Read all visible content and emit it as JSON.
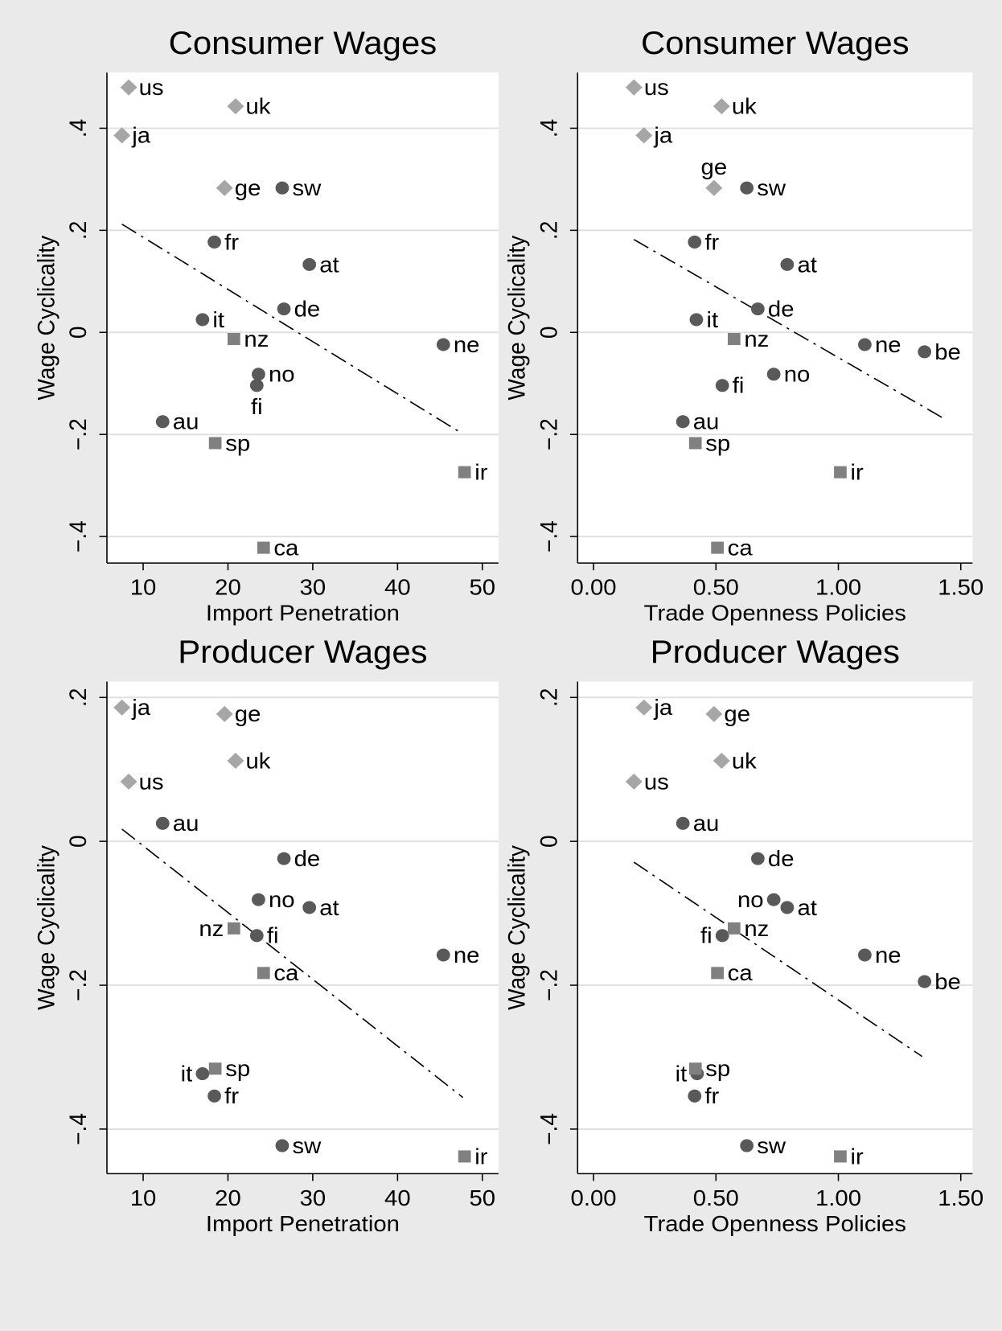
{
  "chart_data": [
    {
      "type": "scatter",
      "title": "Consumer Wages",
      "xlabel": "Import Penetration",
      "ylabel": "Wage Cyclicality",
      "xlim": [
        5.73,
        51.9
      ],
      "ylim": [
        -0.452,
        0.509
      ],
      "xticks": [
        10,
        20,
        30,
        40,
        50
      ],
      "yticks": [
        {
          "value": 0.4,
          "label": ".4"
        },
        {
          "value": 0.2,
          "label": ".2"
        },
        0,
        {
          "value": -0.2,
          "label": "−.2"
        },
        {
          "value": -0.4,
          "label": "−.4"
        }
      ],
      "grid": true,
      "series": [
        {
          "marker": "diamond",
          "color": "#a6a6a6",
          "labels": [
            "us",
            "uk",
            "ja",
            "ge"
          ],
          "x": [
            8.3,
            20.9,
            7.5,
            19.6
          ],
          "y": [
            0.48,
            0.443,
            0.386,
            0.283
          ]
        },
        {
          "marker": "circle",
          "color": "#595959",
          "labels": [
            "sw",
            "fr",
            "at",
            "de",
            "it",
            "ne",
            "no",
            "fi",
            "au"
          ],
          "x": [
            26.4,
            18.4,
            29.6,
            26.6,
            17.0,
            45.4,
            23.6,
            23.4,
            12.3
          ],
          "y": [
            0.283,
            0.177,
            0.133,
            0.046,
            0.025,
            -0.024,
            -0.082,
            -0.104,
            -0.175
          ]
        },
        {
          "marker": "square",
          "color": "#808080",
          "labels": [
            "nz",
            "sp",
            "ir",
            "ca"
          ],
          "x": [
            20.7,
            18.5,
            47.9,
            24.2
          ],
          "y": [
            -0.013,
            -0.217,
            -0.274,
            -0.422
          ]
        }
      ],
      "fit_line": {
        "x": [
          7.5,
          47.2
        ],
        "y": [
          0.212,
          -0.194
        ]
      }
    },
    {
      "type": "scatter",
      "title": "Consumer Wages",
      "xlabel": "Trade Openness Policies",
      "ylabel": "Wage Cyclicality",
      "xlim": [
        -0.065,
        1.548
      ],
      "ylim": [
        -0.452,
        0.509
      ],
      "xticks": [
        {
          "value": 0,
          "label": "0.00"
        },
        {
          "value": 0.5,
          "label": "0.50"
        },
        {
          "value": 1,
          "label": "1.00"
        },
        {
          "value": 1.5,
          "label": "1.50"
        }
      ],
      "yticks": [
        {
          "value": 0.4,
          "label": ".4"
        },
        {
          "value": 0.2,
          "label": ".2"
        },
        0,
        {
          "value": -0.2,
          "label": "−.2"
        },
        {
          "value": -0.4,
          "label": "−.4"
        }
      ],
      "grid": true,
      "series": [
        {
          "marker": "diamond",
          "color": "#a6a6a6",
          "labels": [
            "us",
            "uk",
            "ja",
            "ge"
          ],
          "x": [
            0.165,
            0.523,
            0.206,
            0.492
          ],
          "y": [
            0.48,
            0.443,
            0.386,
            0.283
          ]
        },
        {
          "marker": "circle",
          "color": "#595959",
          "labels": [
            "sw",
            "fr",
            "at",
            "de",
            "it",
            "ne",
            "be",
            "no",
            "fi",
            "au"
          ],
          "x": [
            0.626,
            0.413,
            0.791,
            0.671,
            0.42,
            1.108,
            1.352,
            0.736,
            0.526,
            0.365
          ],
          "y": [
            0.283,
            0.177,
            0.133,
            0.046,
            0.025,
            -0.024,
            -0.038,
            -0.082,
            -0.104,
            -0.175
          ]
        },
        {
          "marker": "square",
          "color": "#808080",
          "labels": [
            "nz",
            "sp",
            "ir",
            "ca"
          ],
          "x": [
            0.574,
            0.416,
            1.008,
            0.506
          ],
          "y": [
            -0.013,
            -0.217,
            -0.274,
            -0.422
          ]
        }
      ],
      "fit_line": {
        "x": [
          0.165,
          1.428
        ],
        "y": [
          0.182,
          -0.168
        ]
      }
    },
    {
      "type": "scatter",
      "title": "Producer Wages",
      "xlabel": "Import Penetration",
      "ylabel": "Wage Cyclicality",
      "xlim": [
        5.73,
        51.9
      ],
      "ylim": [
        -0.462,
        0.222
      ],
      "xticks": [
        10,
        20,
        30,
        40,
        50
      ],
      "yticks": [
        {
          "value": 0.2,
          "label": ".2"
        },
        0,
        {
          "value": -0.2,
          "label": "−.2"
        },
        {
          "value": -0.4,
          "label": "−.4"
        }
      ],
      "grid": true,
      "series": [
        {
          "marker": "diamond",
          "color": "#a6a6a6",
          "labels": [
            "ja",
            "ge",
            "uk",
            "us"
          ],
          "x": [
            7.5,
            19.6,
            20.9,
            8.3
          ],
          "y": [
            0.186,
            0.177,
            0.112,
            0.083
          ]
        },
        {
          "marker": "circle",
          "color": "#595959",
          "labels": [
            "au",
            "de",
            "no",
            "at",
            "fi",
            "ne",
            "it",
            "fr",
            "sw"
          ],
          "x": [
            12.3,
            26.6,
            23.6,
            29.6,
            23.4,
            45.4,
            17.0,
            18.4,
            26.4
          ],
          "y": [
            0.025,
            -0.024,
            -0.081,
            -0.092,
            -0.131,
            -0.158,
            -0.323,
            -0.354,
            -0.423
          ]
        },
        {
          "marker": "square",
          "color": "#808080",
          "labels": [
            "nz",
            "ca",
            "sp",
            "ir"
          ],
          "x": [
            20.7,
            24.2,
            18.5,
            47.9
          ],
          "y": [
            -0.121,
            -0.183,
            -0.316,
            -0.438
          ]
        }
      ],
      "fit_line": {
        "x": [
          7.5,
          47.7
        ],
        "y": [
          0.017,
          -0.356
        ]
      }
    },
    {
      "type": "scatter",
      "title": "Producer Wages",
      "xlabel": "Trade Openness Policies",
      "ylabel": "Wage Cyclicality",
      "xlim": [
        -0.065,
        1.548
      ],
      "ylim": [
        -0.462,
        0.222
      ],
      "xticks": [
        {
          "value": 0,
          "label": "0.00"
        },
        {
          "value": 0.5,
          "label": "0.50"
        },
        {
          "value": 1,
          "label": "1.00"
        },
        {
          "value": 1.5,
          "label": "1.50"
        }
      ],
      "yticks": [
        {
          "value": 0.2,
          "label": ".2"
        },
        0,
        {
          "value": -0.2,
          "label": "−.2"
        },
        {
          "value": -0.4,
          "label": "−.4"
        }
      ],
      "grid": true,
      "series": [
        {
          "marker": "diamond",
          "color": "#a6a6a6",
          "labels": [
            "ja",
            "ge",
            "uk",
            "us"
          ],
          "x": [
            0.206,
            0.492,
            0.523,
            0.165
          ],
          "y": [
            0.186,
            0.177,
            0.112,
            0.083
          ]
        },
        {
          "marker": "circle",
          "color": "#595959",
          "labels": [
            "au",
            "de",
            "no",
            "at",
            "fi",
            "ne",
            "be",
            "it",
            "fr",
            "sw"
          ],
          "x": [
            0.365,
            0.671,
            0.736,
            0.791,
            0.526,
            1.108,
            1.352,
            0.423,
            0.413,
            0.626
          ],
          "y": [
            0.025,
            -0.024,
            -0.081,
            -0.092,
            -0.131,
            -0.158,
            -0.195,
            -0.323,
            -0.354,
            -0.423
          ]
        },
        {
          "marker": "square",
          "color": "#808080",
          "labels": [
            "nz",
            "ca",
            "sp",
            "ir"
          ],
          "x": [
            0.574,
            0.506,
            0.416,
            1.008
          ],
          "y": [
            -0.121,
            -0.183,
            -0.316,
            -0.438
          ]
        }
      ],
      "fit_line": {
        "x": [
          0.165,
          1.342
        ],
        "y": [
          -0.029,
          -0.299
        ]
      }
    }
  ]
}
